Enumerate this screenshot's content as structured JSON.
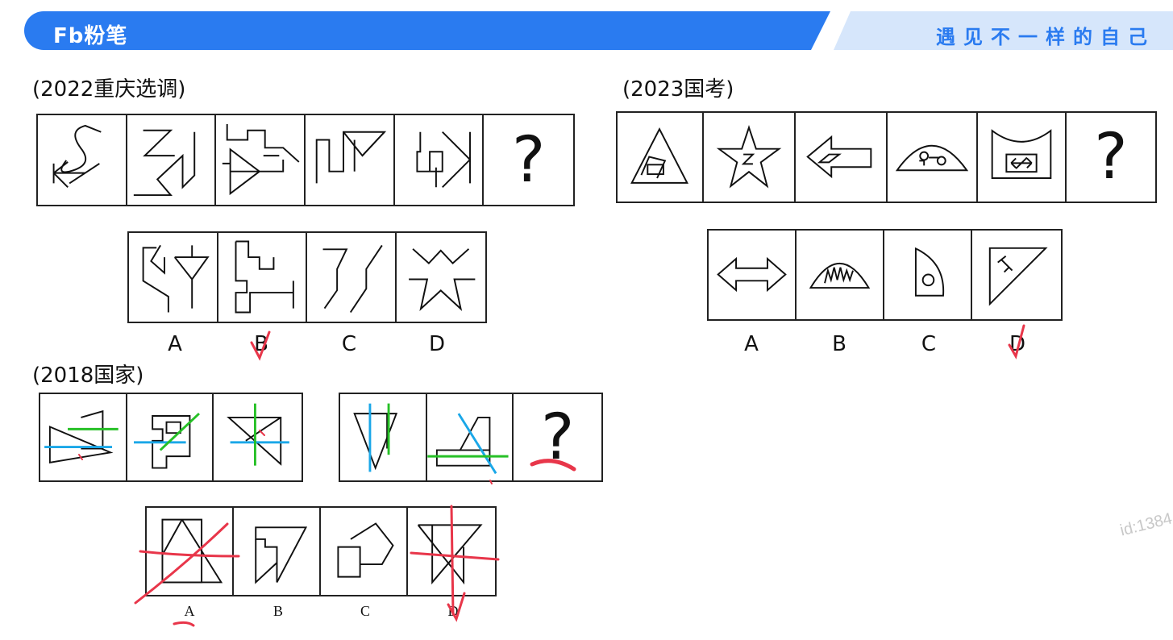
{
  "header": {
    "logo_text": "Fb粉笔",
    "slogan": "遇见不一样的自己",
    "brand_color": "#2a7bf0",
    "slogan_bg": "#d6e6fb"
  },
  "q1": {
    "title": "(2022重庆选调)",
    "question_mark": "?",
    "options": [
      "A",
      "B",
      "C",
      "D"
    ]
  },
  "q2": {
    "title": "(2023国考)",
    "question_mark": "?",
    "options": [
      "A",
      "B",
      "C",
      "D"
    ]
  },
  "q3": {
    "title": "(2018国家)",
    "question_mark": "?",
    "options": [
      "A",
      "B",
      "C",
      "D"
    ]
  },
  "watermark": "id:1384",
  "annotation_colors": {
    "red": "#e8364a",
    "blue": "#1aa7e8",
    "green": "#26c026"
  }
}
